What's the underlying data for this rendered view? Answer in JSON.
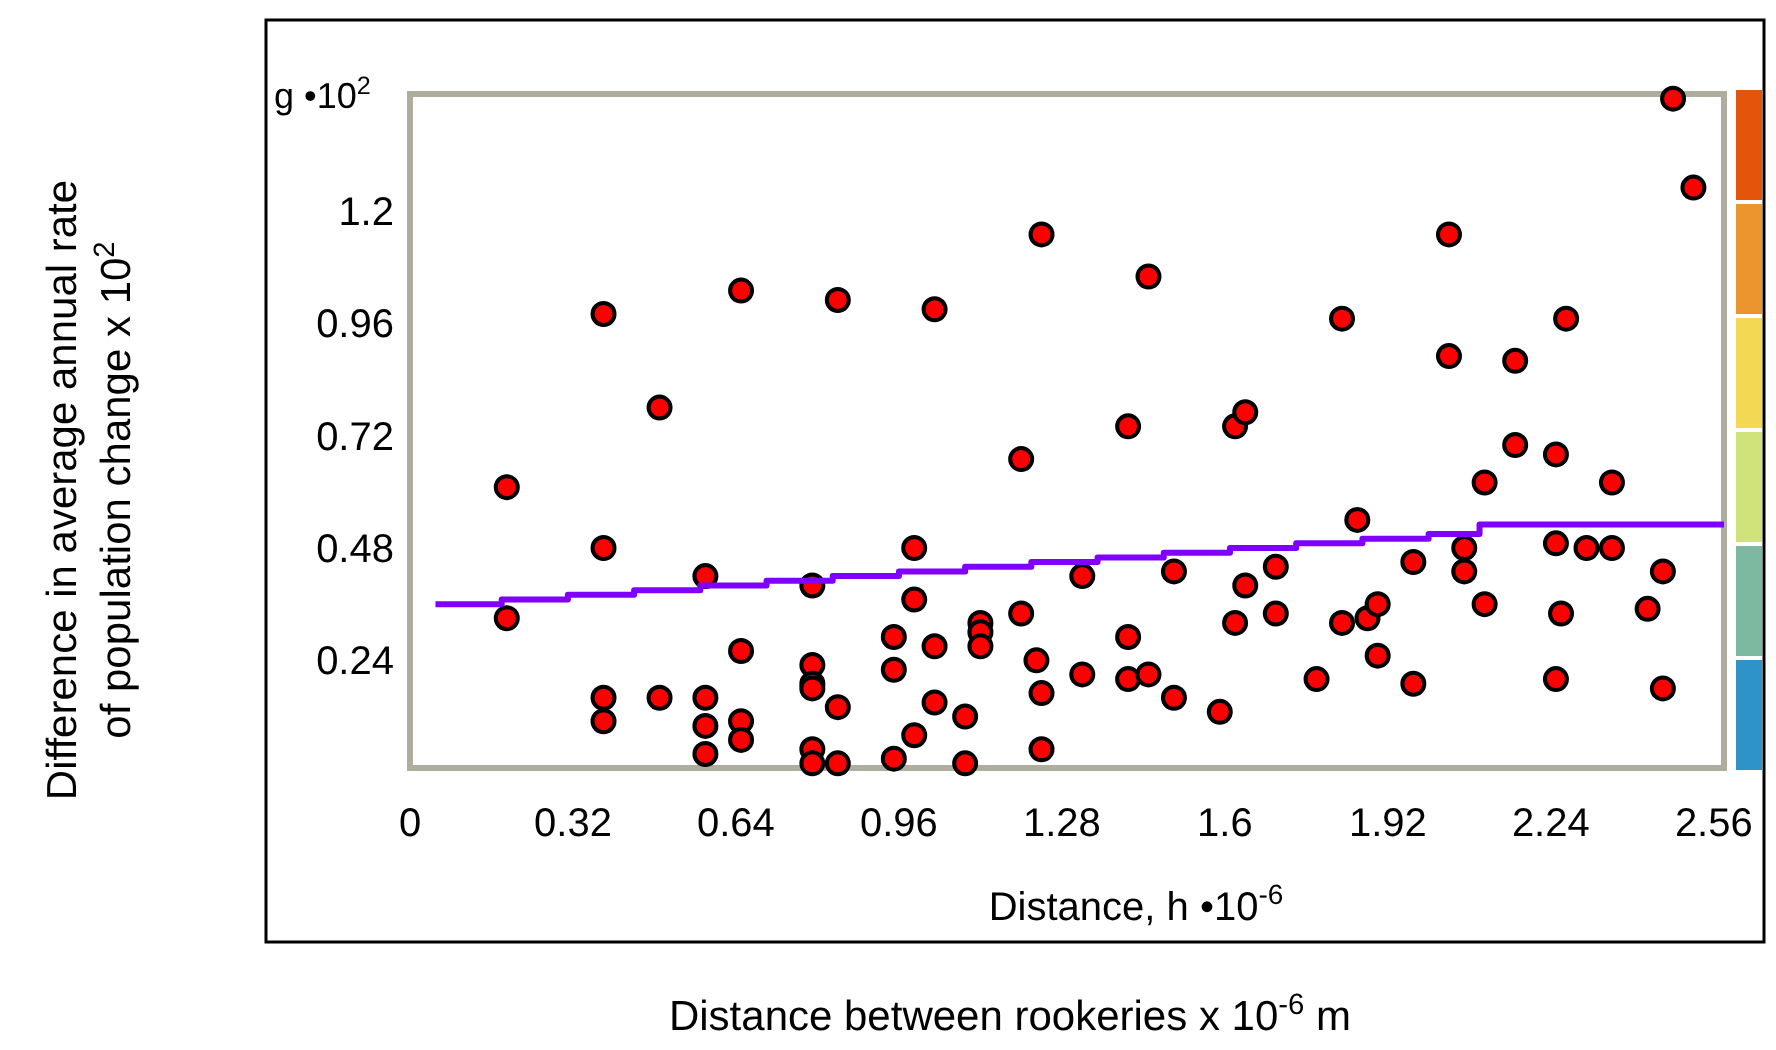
{
  "chart_data": {
    "type": "scatter",
    "xlabel": "Distance between rookeries x 10$^{-6}$ m",
    "ylabel": "Difference in average annual rate of population change x 10$^{2}$",
    "annotations": [
      "g •10$^{2}$",
      "Distance, h •10$^{-6}$"
    ],
    "xlim": [
      0,
      2.58
    ],
    "ylim": [
      0.01,
      1.45
    ],
    "xticks": [
      0,
      0.32,
      0.64,
      0.96,
      1.28,
      1.6,
      1.92,
      2.24,
      2.56
    ],
    "yticks": [
      0.24,
      0.48,
      0.72,
      0.96,
      1.2
    ],
    "grid": false,
    "marker": "circle",
    "series": [
      {
        "color": "#ff0000",
        "x": [
          0.19,
          0.19,
          0.38,
          0.38,
          0.38,
          0.38,
          0.49,
          0.49,
          0.58,
          0.58,
          0.58,
          0.58,
          0.65,
          0.65,
          0.65,
          0.65,
          0.79,
          0.79,
          0.79,
          0.79,
          0.79,
          0.79,
          0.84,
          0.84,
          0.84,
          0.95,
          0.95,
          0.95,
          0.99,
          0.99,
          0.99,
          1.03,
          1.03,
          1.03,
          1.09,
          1.09,
          1.12,
          1.12,
          1.12,
          1.2,
          1.2,
          1.23,
          1.24,
          1.24,
          1.24,
          1.32,
          1.32,
          1.41,
          1.41,
          1.41,
          1.45,
          1.45,
          1.5,
          1.5,
          1.59,
          1.62,
          1.62,
          1.64,
          1.64,
          1.7,
          1.7,
          1.78,
          1.83,
          1.83,
          1.86,
          1.88,
          1.9,
          1.9,
          1.97,
          1.97,
          2.04,
          2.04,
          2.07,
          2.07,
          2.11,
          2.11,
          2.17,
          2.17,
          2.25,
          2.25,
          2.25,
          2.26,
          2.27,
          2.31,
          2.36,
          2.36,
          2.43,
          2.46,
          2.46,
          2.48,
          2.52
        ],
        "values": [
          0.33,
          0.61,
          0.98,
          0.48,
          0.16,
          0.11,
          0.78,
          0.16,
          0.42,
          0.16,
          0.1,
          0.04,
          1.03,
          0.26,
          0.11,
          0.07,
          0.4,
          0.23,
          0.19,
          0.18,
          0.05,
          0.02,
          1.01,
          0.14,
          0.02,
          0.29,
          0.22,
          0.03,
          0.48,
          0.37,
          0.08,
          0.99,
          0.27,
          0.15,
          0.12,
          0.02,
          0.32,
          0.3,
          0.27,
          0.67,
          0.34,
          0.24,
          1.15,
          0.17,
          0.05,
          0.42,
          0.21,
          0.74,
          0.29,
          0.2,
          1.06,
          0.21,
          0.16,
          0.43,
          0.13,
          0.74,
          0.32,
          0.77,
          0.4,
          0.34,
          0.44,
          0.2,
          0.32,
          0.97,
          0.54,
          0.33,
          0.25,
          0.36,
          0.19,
          0.45,
          1.15,
          0.89,
          0.48,
          0.43,
          0.62,
          0.36,
          0.88,
          0.7,
          0.68,
          0.2,
          0.49,
          0.34,
          0.97,
          0.48,
          0.48,
          0.62,
          0.35,
          0.43,
          0.18,
          1.44,
          1.25
        ]
      },
      {
        "type": "step",
        "color": "#8000ff",
        "marker": "none",
        "x": [
          0.05,
          0.18,
          0.31,
          0.44,
          0.57,
          0.7,
          0.83,
          0.96,
          1.09,
          1.22,
          1.35,
          1.48,
          1.61,
          1.74,
          1.87,
          2.0,
          2.1,
          2.58
        ],
        "values": [
          0.36,
          0.37,
          0.38,
          0.39,
          0.4,
          0.41,
          0.42,
          0.43,
          0.44,
          0.45,
          0.46,
          0.47,
          0.48,
          0.49,
          0.5,
          0.51,
          0.53,
          0.53
        ]
      }
    ]
  }
}
